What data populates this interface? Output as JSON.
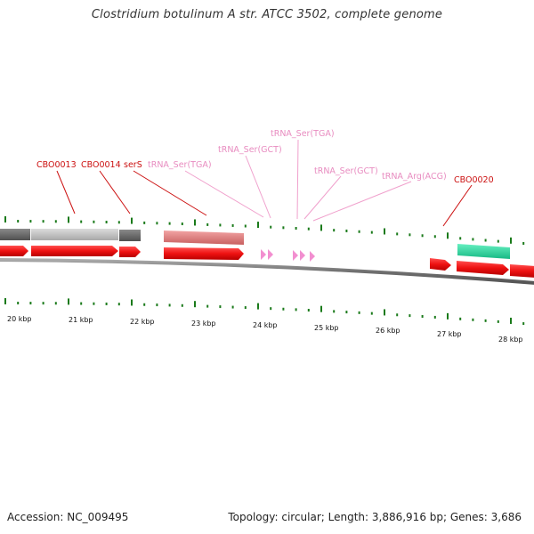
{
  "title": "Clostridium botulinum A str. ATCC 3502, complete genome",
  "footer": {
    "accession": "Accession: NC_009495",
    "stats": "Topology: circular; Length: 3,886,916 bp; Genes: 3,686"
  },
  "axis": {
    "unit": "kbp",
    "tick_labels": [
      "20 kbp",
      "21 kbp",
      "22 kbp",
      "23 kbp",
      "24 kbp",
      "25 kbp",
      "26 kbp",
      "27 kbp",
      "28 kbp"
    ]
  },
  "colors": {
    "cds": "#ee1111",
    "trna": "#f28fd0",
    "gene_gray_dark": "#6b6b6b",
    "gene_gray_light": "#c4c4c4",
    "gene_pink": "#e88a8a",
    "gene_green": "#33ddaa",
    "tick": "#1a7a1a",
    "backbone": "#777777",
    "label_red": "#cc1111",
    "label_pink": "#e88cc0"
  },
  "features": {
    "red_labels": [
      "CBO0013",
      "CBO0014",
      "serS",
      "CBO0020"
    ],
    "pink_labels": [
      "tRNA_Ser(TGA)",
      "tRNA_Ser(GCT)",
      "tRNA_Ser(TGA)",
      "tRNA_Ser(GCT)",
      "tRNA_Arg(ACG)"
    ]
  }
}
